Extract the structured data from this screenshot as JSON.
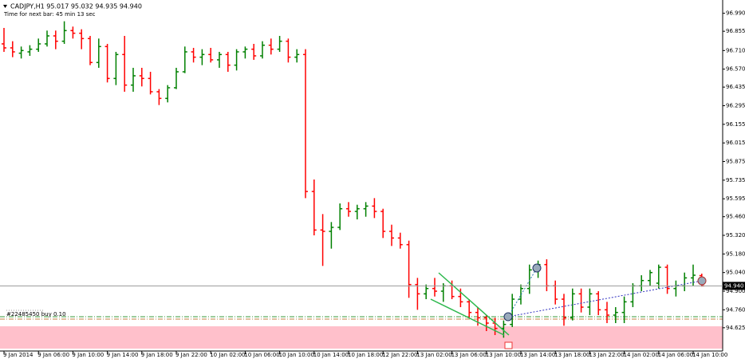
{
  "chart_data": {
    "type": "ohlc",
    "title": "CADJPY,H1  95.017 95.032 94.935 94.940",
    "subtitle": "Time for next bar: 45 min 13 sec",
    "order_label": "#22485450 buy 0.10",
    "current_price": {
      "value": 94.94,
      "label": "94.940"
    },
    "up_color": "#008000",
    "down_color": "#ff0000",
    "ylim": [
      94.45,
      97.09
    ],
    "yticks": [
      {
        "value": 96.99,
        "label": "96.990"
      },
      96.855,
      {
        "value": 96.71,
        "label": "96.710"
      },
      {
        "value": 96.57,
        "label": "96.570"
      },
      96.435,
      96.295,
      96.155,
      96.015,
      95.875,
      95.735,
      95.595,
      {
        "value": 95.46,
        "label": "95.460"
      },
      {
        "value": 95.32,
        "label": "95.320"
      },
      {
        "value": 95.18,
        "label": "95.180"
      },
      {
        "value": 95.04,
        "label": "95.040"
      },
      {
        "value": 94.9,
        "label": "94.900"
      },
      {
        "value": 94.76,
        "label": "94.760"
      },
      94.625
    ],
    "categories": [
      "9 Jan 2014",
      null,
      null,
      null,
      "9 Jan 06:00",
      null,
      null,
      null,
      "9 Jan 10:00",
      null,
      null,
      null,
      "9 Jan 14:00",
      null,
      null,
      null,
      "9 Jan 18:00",
      null,
      null,
      null,
      "9 Jan 22:00",
      null,
      null,
      null,
      "10 Jan 02:00",
      null,
      null,
      null,
      "10 Jan 06:00",
      null,
      null,
      null,
      "10 Jan 10:00",
      null,
      null,
      null,
      "10 Jan 14:00",
      null,
      null,
      null,
      "10 Jan 18:00",
      null,
      null,
      null,
      "12 Jan 22:00",
      null,
      null,
      null,
      "13 Jan 02:00",
      null,
      null,
      null,
      "13 Jan 06:00",
      null,
      null,
      null,
      "13 Jan 10:00",
      null,
      null,
      null,
      "13 Jan 14:00",
      null,
      null,
      null,
      "13 Jan 18:00",
      null,
      null,
      null,
      "13 Jan 22:00",
      null,
      null,
      null,
      "14 Jan 02:00",
      null,
      null,
      null,
      "14 Jan 06:00",
      null,
      null,
      null,
      "14 Jan 10:00",
      null
    ],
    "open": [
      96.76,
      96.73,
      96.69,
      96.7,
      96.72,
      96.76,
      96.82,
      96.78,
      96.86,
      96.84,
      96.8,
      96.62,
      96.74,
      96.5,
      96.68,
      96.45,
      96.52,
      96.5,
      96.4,
      96.35,
      96.43,
      96.55,
      96.7,
      96.66,
      96.68,
      96.64,
      96.68,
      96.6,
      96.7,
      96.72,
      96.67,
      96.75,
      96.72,
      96.78,
      96.66,
      96.68,
      95.65,
      95.36,
      95.35,
      95.38,
      95.52,
      95.5,
      95.52,
      95.54,
      95.5,
      95.35,
      95.3,
      95.25,
      94.95,
      94.88,
      94.92,
      94.9,
      94.94,
      94.86,
      94.82,
      94.74,
      94.7,
      94.66,
      94.62,
      94.65,
      94.84,
      94.92,
      95.06,
      95.1,
      94.94,
      94.84,
      94.7,
      94.88,
      94.78,
      94.88,
      94.76,
      94.72,
      94.74,
      94.82,
      94.94,
      94.98,
      94.96,
      95.08,
      94.92,
      94.94,
      95.0,
      95.017
    ],
    "high": [
      96.88,
      96.78,
      96.74,
      96.75,
      96.8,
      96.86,
      96.86,
      96.93,
      96.89,
      96.87,
      96.82,
      96.8,
      96.76,
      96.7,
      96.82,
      96.58,
      96.58,
      96.55,
      96.42,
      96.45,
      96.58,
      96.74,
      96.73,
      96.72,
      96.73,
      96.7,
      96.7,
      96.72,
      96.74,
      96.76,
      96.78,
      96.8,
      96.82,
      96.8,
      96.72,
      96.72,
      95.74,
      95.48,
      95.42,
      95.56,
      95.57,
      95.55,
      95.57,
      95.6,
      95.52,
      95.4,
      95.34,
      95.28,
      95.0,
      94.95,
      95.0,
      94.96,
      94.98,
      94.92,
      94.84,
      94.78,
      94.72,
      94.7,
      94.68,
      94.88,
      94.95,
      95.1,
      95.13,
      95.14,
      94.98,
      94.88,
      94.92,
      94.92,
      94.92,
      94.9,
      94.82,
      94.78,
      94.86,
      94.96,
      95.02,
      95.06,
      95.1,
      95.1,
      94.98,
      95.04,
      95.1,
      95.032
    ],
    "low": [
      96.7,
      96.66,
      96.65,
      96.67,
      96.7,
      96.74,
      96.72,
      96.76,
      96.8,
      96.72,
      96.6,
      96.58,
      96.47,
      96.45,
      96.4,
      96.4,
      96.44,
      96.38,
      96.3,
      96.32,
      96.42,
      96.54,
      96.62,
      96.6,
      96.62,
      96.58,
      96.55,
      96.56,
      96.65,
      96.64,
      96.65,
      96.68,
      96.7,
      96.62,
      96.62,
      95.6,
      95.32,
      95.09,
      95.22,
      95.36,
      95.46,
      95.44,
      95.46,
      95.45,
      95.3,
      95.24,
      95.22,
      94.85,
      94.76,
      94.84,
      94.86,
      94.82,
      94.84,
      94.78,
      94.7,
      94.64,
      94.6,
      94.57,
      94.55,
      94.63,
      94.8,
      94.88,
      95.0,
      94.9,
      94.8,
      94.64,
      94.68,
      94.74,
      94.72,
      94.72,
      94.66,
      94.66,
      94.66,
      94.78,
      94.9,
      94.94,
      94.92,
      94.88,
      94.86,
      94.9,
      94.94,
      94.935
    ],
    "close": [
      96.73,
      96.7,
      96.71,
      96.72,
      96.76,
      96.82,
      96.78,
      96.86,
      96.84,
      96.8,
      96.62,
      96.74,
      96.5,
      96.68,
      96.45,
      96.52,
      96.5,
      96.4,
      96.35,
      96.43,
      96.55,
      96.7,
      96.66,
      96.68,
      96.64,
      96.68,
      96.6,
      96.7,
      96.72,
      96.67,
      96.75,
      96.72,
      96.78,
      96.66,
      96.68,
      95.65,
      95.36,
      95.35,
      95.38,
      95.52,
      95.5,
      95.52,
      95.54,
      95.5,
      95.35,
      95.3,
      95.25,
      94.95,
      94.88,
      94.92,
      94.9,
      94.94,
      94.86,
      94.82,
      94.74,
      94.7,
      94.66,
      94.62,
      94.65,
      94.84,
      94.92,
      95.06,
      95.1,
      94.94,
      94.84,
      94.7,
      94.88,
      94.78,
      94.88,
      94.76,
      94.72,
      94.74,
      94.82,
      94.94,
      94.98,
      95.04,
      95.08,
      94.92,
      94.94,
      95.0,
      95.02,
      94.94
    ]
  }
}
